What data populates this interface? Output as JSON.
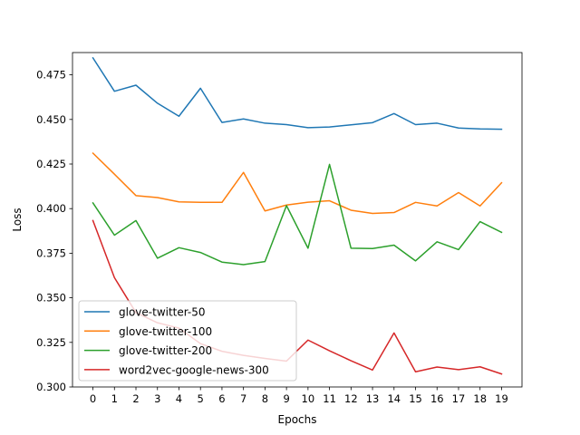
{
  "chart_data": {
    "type": "line",
    "title": "",
    "xlabel": "Epochs",
    "ylabel": "Loss",
    "xlim": [
      -0.95,
      19.95
    ],
    "ylim": [
      0.3,
      0.4875
    ],
    "x_ticks": [
      0,
      1,
      2,
      3,
      4,
      5,
      6,
      7,
      8,
      9,
      10,
      11,
      12,
      13,
      14,
      15,
      16,
      17,
      18,
      19
    ],
    "y_ticks": [
      0.3,
      0.325,
      0.35,
      0.375,
      0.4,
      0.425,
      0.45,
      0.475
    ],
    "y_tick_labels": [
      "0.300",
      "0.325",
      "0.350",
      "0.375",
      "0.400",
      "0.425",
      "0.450",
      "0.475"
    ],
    "grid": false,
    "legend_position": "lower-left",
    "x": [
      0,
      1,
      2,
      3,
      4,
      5,
      6,
      7,
      8,
      9,
      10,
      11,
      12,
      13,
      14,
      15,
      16,
      17,
      18,
      19
    ],
    "series": [
      {
        "name": "glove-twitter-50",
        "color": "#1f77b4",
        "values": [
          0.4845,
          0.4658,
          0.4692,
          0.4591,
          0.4518,
          0.4675,
          0.4483,
          0.4503,
          0.4479,
          0.4471,
          0.4454,
          0.4458,
          0.447,
          0.4482,
          0.4533,
          0.4471,
          0.4479,
          0.4452,
          0.4447,
          0.4445
        ]
      },
      {
        "name": "glove-twitter-100",
        "color": "#ff7f0e",
        "values": [
          0.4311,
          0.4193,
          0.4073,
          0.4062,
          0.4038,
          0.4035,
          0.4035,
          0.4203,
          0.3987,
          0.402,
          0.4036,
          0.4044,
          0.3991,
          0.3973,
          0.3978,
          0.4035,
          0.4015,
          0.409,
          0.4015,
          0.4145
        ]
      },
      {
        "name": "glove-twitter-200",
        "color": "#2ca02c",
        "values": [
          0.4032,
          0.3851,
          0.3933,
          0.3722,
          0.3781,
          0.3754,
          0.37,
          0.3686,
          0.3703,
          0.4017,
          0.3778,
          0.4248,
          0.3778,
          0.3776,
          0.3795,
          0.3707,
          0.3814,
          0.377,
          0.3927,
          0.3867
        ]
      },
      {
        "name": "word2vec-google-news-300",
        "color": "#d62728",
        "values": [
          0.3933,
          0.3613,
          0.3417,
          0.336,
          0.333,
          0.3243,
          0.32,
          0.3177,
          0.316,
          0.3145,
          0.3263,
          0.3203,
          0.3147,
          0.3095,
          0.3303,
          0.3085,
          0.3112,
          0.3097,
          0.3113,
          0.3073
        ]
      }
    ]
  }
}
